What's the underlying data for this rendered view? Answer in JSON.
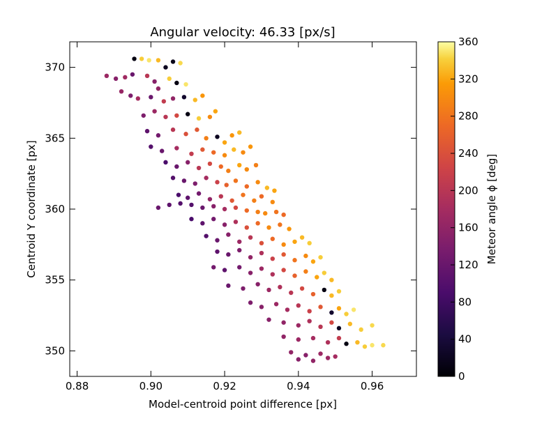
{
  "chart_data": {
    "type": "scatter",
    "title": "Angular velocity: 46.33 [px/s]",
    "xlabel": "Model-centroid  point difference [px]",
    "ylabel": "Centroid Y coordinate [px]",
    "xlim": [
      0.878,
      0.972
    ],
    "ylim": [
      348.2,
      371.8
    ],
    "x_ticks": [
      0.88,
      0.9,
      0.92,
      0.94,
      0.96
    ],
    "x_tick_labels": [
      "0.88",
      "0.90",
      "0.92",
      "0.94",
      "0.96"
    ],
    "y_ticks": [
      350,
      355,
      360,
      365,
      370
    ],
    "y_tick_labels": [
      "350",
      "355",
      "360",
      "365",
      "370"
    ],
    "grid": false,
    "colorbar": {
      "label": "Meteor angle ϕ [deg]",
      "colormap": "inferno",
      "range": [
        0,
        360
      ],
      "ticks": [
        0,
        40,
        80,
        120,
        160,
        200,
        240,
        280,
        320,
        360
      ],
      "tick_labels": [
        "0",
        "40",
        "80",
        "120",
        "160",
        "200",
        "240",
        "280",
        "320",
        "360"
      ]
    },
    "series": [
      {
        "color_by": "Meteor angle",
        "points": [
          {
            "x": 0.8955,
            "y": 370.6,
            "c": 10
          },
          {
            "x": 0.8975,
            "y": 370.6,
            "c": 340
          },
          {
            "x": 0.8995,
            "y": 370.5,
            "c": 350
          },
          {
            "x": 0.902,
            "y": 370.5,
            "c": 330
          },
          {
            "x": 0.906,
            "y": 370.4,
            "c": 15
          },
          {
            "x": 0.908,
            "y": 370.3,
            "c": 345
          },
          {
            "x": 0.904,
            "y": 370.0,
            "c": 20
          },
          {
            "x": 0.888,
            "y": 369.4,
            "c": 170
          },
          {
            "x": 0.8905,
            "y": 369.2,
            "c": 150
          },
          {
            "x": 0.893,
            "y": 369.3,
            "c": 175
          },
          {
            "x": 0.895,
            "y": 369.5,
            "c": 120
          },
          {
            "x": 0.899,
            "y": 369.4,
            "c": 200
          },
          {
            "x": 0.901,
            "y": 369.0,
            "c": 150
          },
          {
            "x": 0.905,
            "y": 369.2,
            "c": 340
          },
          {
            "x": 0.907,
            "y": 368.9,
            "c": 10
          },
          {
            "x": 0.9095,
            "y": 368.8,
            "c": 350
          },
          {
            "x": 0.902,
            "y": 368.5,
            "c": 160
          },
          {
            "x": 0.892,
            "y": 368.3,
            "c": 165
          },
          {
            "x": 0.8945,
            "y": 368.0,
            "c": 140
          },
          {
            "x": 0.8965,
            "y": 367.8,
            "c": 180
          },
          {
            "x": 0.9,
            "y": 367.9,
            "c": 120
          },
          {
            "x": 0.9035,
            "y": 367.6,
            "c": 210
          },
          {
            "x": 0.906,
            "y": 367.8,
            "c": 160
          },
          {
            "x": 0.909,
            "y": 367.9,
            "c": 30
          },
          {
            "x": 0.912,
            "y": 367.7,
            "c": 330
          },
          {
            "x": 0.914,
            "y": 368.0,
            "c": 310
          },
          {
            "x": 0.898,
            "y": 366.6,
            "c": 140
          },
          {
            "x": 0.901,
            "y": 366.9,
            "c": 170
          },
          {
            "x": 0.904,
            "y": 366.5,
            "c": 200
          },
          {
            "x": 0.907,
            "y": 366.6,
            "c": 230
          },
          {
            "x": 0.91,
            "y": 366.7,
            "c": 10
          },
          {
            "x": 0.913,
            "y": 366.4,
            "c": 340
          },
          {
            "x": 0.916,
            "y": 366.5,
            "c": 300
          },
          {
            "x": 0.9175,
            "y": 366.9,
            "c": 320
          },
          {
            "x": 0.899,
            "y": 365.5,
            "c": 110
          },
          {
            "x": 0.902,
            "y": 365.2,
            "c": 130
          },
          {
            "x": 0.906,
            "y": 365.6,
            "c": 200
          },
          {
            "x": 0.9095,
            "y": 365.3,
            "c": 240
          },
          {
            "x": 0.9125,
            "y": 365.6,
            "c": 250
          },
          {
            "x": 0.915,
            "y": 365.0,
            "c": 290
          },
          {
            "x": 0.918,
            "y": 365.1,
            "c": 20
          },
          {
            "x": 0.92,
            "y": 364.7,
            "c": 320
          },
          {
            "x": 0.922,
            "y": 365.2,
            "c": 310
          },
          {
            "x": 0.924,
            "y": 365.4,
            "c": 330
          },
          {
            "x": 0.9,
            "y": 364.4,
            "c": 100
          },
          {
            "x": 0.903,
            "y": 364.1,
            "c": 120
          },
          {
            "x": 0.907,
            "y": 364.3,
            "c": 180
          },
          {
            "x": 0.911,
            "y": 363.9,
            "c": 210
          },
          {
            "x": 0.914,
            "y": 364.2,
            "c": 250
          },
          {
            "x": 0.917,
            "y": 364.0,
            "c": 270
          },
          {
            "x": 0.92,
            "y": 363.8,
            "c": 300
          },
          {
            "x": 0.9225,
            "y": 364.2,
            "c": 330
          },
          {
            "x": 0.925,
            "y": 364.0,
            "c": 300
          },
          {
            "x": 0.927,
            "y": 364.4,
            "c": 310
          },
          {
            "x": 0.904,
            "y": 363.3,
            "c": 90
          },
          {
            "x": 0.907,
            "y": 363.0,
            "c": 120
          },
          {
            "x": 0.91,
            "y": 363.3,
            "c": 150
          },
          {
            "x": 0.913,
            "y": 362.9,
            "c": 200
          },
          {
            "x": 0.916,
            "y": 363.2,
            "c": 230
          },
          {
            "x": 0.919,
            "y": 363.0,
            "c": 270
          },
          {
            "x": 0.921,
            "y": 362.7,
            "c": 290
          },
          {
            "x": 0.924,
            "y": 363.1,
            "c": 320
          },
          {
            "x": 0.926,
            "y": 362.8,
            "c": 300
          },
          {
            "x": 0.9285,
            "y": 363.1,
            "c": 290
          },
          {
            "x": 0.906,
            "y": 362.2,
            "c": 100
          },
          {
            "x": 0.909,
            "y": 362.0,
            "c": 120
          },
          {
            "x": 0.912,
            "y": 361.8,
            "c": 140
          },
          {
            "x": 0.915,
            "y": 362.2,
            "c": 180
          },
          {
            "x": 0.918,
            "y": 361.9,
            "c": 220
          },
          {
            "x": 0.9205,
            "y": 361.7,
            "c": 260
          },
          {
            "x": 0.923,
            "y": 362.0,
            "c": 280
          },
          {
            "x": 0.926,
            "y": 361.6,
            "c": 270
          },
          {
            "x": 0.929,
            "y": 361.9,
            "c": 300
          },
          {
            "x": 0.9315,
            "y": 361.5,
            "c": 330
          },
          {
            "x": 0.9335,
            "y": 361.3,
            "c": 320
          },
          {
            "x": 0.9075,
            "y": 361.0,
            "c": 90
          },
          {
            "x": 0.91,
            "y": 360.8,
            "c": 110
          },
          {
            "x": 0.913,
            "y": 361.1,
            "c": 130
          },
          {
            "x": 0.916,
            "y": 360.7,
            "c": 160
          },
          {
            "x": 0.919,
            "y": 360.9,
            "c": 200
          },
          {
            "x": 0.922,
            "y": 360.6,
            "c": 250
          },
          {
            "x": 0.925,
            "y": 361.0,
            "c": 280
          },
          {
            "x": 0.928,
            "y": 360.6,
            "c": 290
          },
          {
            "x": 0.93,
            "y": 360.9,
            "c": 270
          },
          {
            "x": 0.933,
            "y": 360.5,
            "c": 300
          },
          {
            "x": 0.902,
            "y": 360.1,
            "c": 120
          },
          {
            "x": 0.905,
            "y": 360.3,
            "c": 110
          },
          {
            "x": 0.908,
            "y": 360.4,
            "c": 100
          },
          {
            "x": 0.911,
            "y": 360.3,
            "c": 100
          },
          {
            "x": 0.914,
            "y": 360.1,
            "c": 120
          },
          {
            "x": 0.917,
            "y": 360.2,
            "c": 150
          },
          {
            "x": 0.92,
            "y": 360.0,
            "c": 180
          },
          {
            "x": 0.923,
            "y": 360.1,
            "c": 230
          },
          {
            "x": 0.926,
            "y": 359.9,
            "c": 270
          },
          {
            "x": 0.929,
            "y": 359.8,
            "c": 290
          },
          {
            "x": 0.931,
            "y": 359.7,
            "c": 300
          },
          {
            "x": 0.934,
            "y": 359.8,
            "c": 280
          },
          {
            "x": 0.936,
            "y": 359.6,
            "c": 270
          },
          {
            "x": 0.911,
            "y": 359.3,
            "c": 90
          },
          {
            "x": 0.914,
            "y": 359.0,
            "c": 110
          },
          {
            "x": 0.917,
            "y": 359.3,
            "c": 130
          },
          {
            "x": 0.92,
            "y": 358.9,
            "c": 150
          },
          {
            "x": 0.923,
            "y": 359.1,
            "c": 190
          },
          {
            "x": 0.926,
            "y": 358.7,
            "c": 240
          },
          {
            "x": 0.929,
            "y": 359.0,
            "c": 270
          },
          {
            "x": 0.932,
            "y": 358.7,
            "c": 300
          },
          {
            "x": 0.935,
            "y": 358.9,
            "c": 280
          },
          {
            "x": 0.9375,
            "y": 358.6,
            "c": 310
          },
          {
            "x": 0.915,
            "y": 358.1,
            "c": 100
          },
          {
            "x": 0.918,
            "y": 357.8,
            "c": 120
          },
          {
            "x": 0.921,
            "y": 358.2,
            "c": 150
          },
          {
            "x": 0.924,
            "y": 357.7,
            "c": 170
          },
          {
            "x": 0.927,
            "y": 358.0,
            "c": 200
          },
          {
            "x": 0.93,
            "y": 357.6,
            "c": 240
          },
          {
            "x": 0.933,
            "y": 357.9,
            "c": 270
          },
          {
            "x": 0.936,
            "y": 357.5,
            "c": 300
          },
          {
            "x": 0.939,
            "y": 357.7,
            "c": 320
          },
          {
            "x": 0.941,
            "y": 358.0,
            "c": 330
          },
          {
            "x": 0.943,
            "y": 357.6,
            "c": 340
          },
          {
            "x": 0.918,
            "y": 357.0,
            "c": 110
          },
          {
            "x": 0.921,
            "y": 356.8,
            "c": 120
          },
          {
            "x": 0.924,
            "y": 357.1,
            "c": 140
          },
          {
            "x": 0.927,
            "y": 356.6,
            "c": 160
          },
          {
            "x": 0.93,
            "y": 356.9,
            "c": 190
          },
          {
            "x": 0.933,
            "y": 356.5,
            "c": 220
          },
          {
            "x": 0.936,
            "y": 356.8,
            "c": 250
          },
          {
            "x": 0.939,
            "y": 356.4,
            "c": 280
          },
          {
            "x": 0.942,
            "y": 356.7,
            "c": 300
          },
          {
            "x": 0.944,
            "y": 356.3,
            "c": 320
          },
          {
            "x": 0.946,
            "y": 356.6,
            "c": 340
          },
          {
            "x": 0.917,
            "y": 355.9,
            "c": 130
          },
          {
            "x": 0.92,
            "y": 355.7,
            "c": 110
          },
          {
            "x": 0.924,
            "y": 355.9,
            "c": 130
          },
          {
            "x": 0.927,
            "y": 355.5,
            "c": 150
          },
          {
            "x": 0.93,
            "y": 355.8,
            "c": 170
          },
          {
            "x": 0.933,
            "y": 355.4,
            "c": 190
          },
          {
            "x": 0.936,
            "y": 355.7,
            "c": 230
          },
          {
            "x": 0.939,
            "y": 355.3,
            "c": 260
          },
          {
            "x": 0.942,
            "y": 355.6,
            "c": 290
          },
          {
            "x": 0.945,
            "y": 355.2,
            "c": 320
          },
          {
            "x": 0.947,
            "y": 355.5,
            "c": 340
          },
          {
            "x": 0.949,
            "y": 355.0,
            "c": 330
          },
          {
            "x": 0.921,
            "y": 354.6,
            "c": 120
          },
          {
            "x": 0.925,
            "y": 354.4,
            "c": 140
          },
          {
            "x": 0.929,
            "y": 354.7,
            "c": 150
          },
          {
            "x": 0.932,
            "y": 354.3,
            "c": 170
          },
          {
            "x": 0.935,
            "y": 354.5,
            "c": 190
          },
          {
            "x": 0.938,
            "y": 354.1,
            "c": 200
          },
          {
            "x": 0.941,
            "y": 354.4,
            "c": 230
          },
          {
            "x": 0.944,
            "y": 354.0,
            "c": 260
          },
          {
            "x": 0.947,
            "y": 354.3,
            "c": 10
          },
          {
            "x": 0.949,
            "y": 353.9,
            "c": 330
          },
          {
            "x": 0.951,
            "y": 354.2,
            "c": 340
          },
          {
            "x": 0.927,
            "y": 353.4,
            "c": 140
          },
          {
            "x": 0.93,
            "y": 353.1,
            "c": 150
          },
          {
            "x": 0.934,
            "y": 353.3,
            "c": 170
          },
          {
            "x": 0.937,
            "y": 352.9,
            "c": 180
          },
          {
            "x": 0.94,
            "y": 353.2,
            "c": 200
          },
          {
            "x": 0.943,
            "y": 352.8,
            "c": 220
          },
          {
            "x": 0.946,
            "y": 353.1,
            "c": 250
          },
          {
            "x": 0.949,
            "y": 352.7,
            "c": 30
          },
          {
            "x": 0.951,
            "y": 353.0,
            "c": 320
          },
          {
            "x": 0.953,
            "y": 352.6,
            "c": 340
          },
          {
            "x": 0.955,
            "y": 352.9,
            "c": 350
          },
          {
            "x": 0.932,
            "y": 352.2,
            "c": 150
          },
          {
            "x": 0.936,
            "y": 352.0,
            "c": 160
          },
          {
            "x": 0.94,
            "y": 351.8,
            "c": 170
          },
          {
            "x": 0.943,
            "y": 352.1,
            "c": 190
          },
          {
            "x": 0.946,
            "y": 351.7,
            "c": 200
          },
          {
            "x": 0.949,
            "y": 352.0,
            "c": 230
          },
          {
            "x": 0.951,
            "y": 351.6,
            "c": 20
          },
          {
            "x": 0.954,
            "y": 351.9,
            "c": 330
          },
          {
            "x": 0.957,
            "y": 351.5,
            "c": 340
          },
          {
            "x": 0.96,
            "y": 351.8,
            "c": 345
          },
          {
            "x": 0.936,
            "y": 351.0,
            "c": 160
          },
          {
            "x": 0.94,
            "y": 350.8,
            "c": 170
          },
          {
            "x": 0.944,
            "y": 350.9,
            "c": 180
          },
          {
            "x": 0.948,
            "y": 350.6,
            "c": 190
          },
          {
            "x": 0.951,
            "y": 350.9,
            "c": 210
          },
          {
            "x": 0.953,
            "y": 350.5,
            "c": 10
          },
          {
            "x": 0.956,
            "y": 350.6,
            "c": 330
          },
          {
            "x": 0.96,
            "y": 350.4,
            "c": 350
          },
          {
            "x": 0.963,
            "y": 350.4,
            "c": 345
          },
          {
            "x": 0.958,
            "y": 350.3,
            "c": 340
          },
          {
            "x": 0.938,
            "y": 349.9,
            "c": 160
          },
          {
            "x": 0.942,
            "y": 349.7,
            "c": 150
          },
          {
            "x": 0.946,
            "y": 349.8,
            "c": 170
          },
          {
            "x": 0.95,
            "y": 349.6,
            "c": 180
          },
          {
            "x": 0.944,
            "y": 349.3,
            "c": 160
          },
          {
            "x": 0.94,
            "y": 349.4,
            "c": 150
          },
          {
            "x": 0.948,
            "y": 349.5,
            "c": 170
          }
        ]
      }
    ]
  }
}
